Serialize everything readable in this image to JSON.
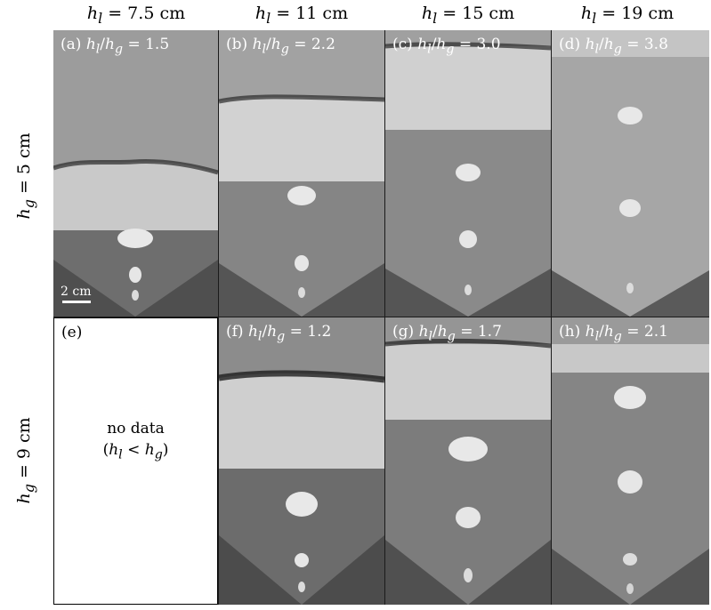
{
  "column_headers": [
    {
      "var": "h",
      "sub": "l",
      "value": " = 7.5 cm"
    },
    {
      "var": "h",
      "sub": "l",
      "value": " = 11 cm"
    },
    {
      "var": "h",
      "sub": "l",
      "value": " = 15 cm"
    },
    {
      "var": "h",
      "sub": "l",
      "value": " = 19 cm"
    }
  ],
  "row_labels": [
    {
      "var": "h",
      "sub": "g",
      "value": " = 5 cm"
    },
    {
      "var": "h",
      "sub": "g",
      "value": " = 9 cm"
    }
  ],
  "panels": [
    {
      "tag": "(a)",
      "ratio": " = 1.5"
    },
    {
      "tag": "(b)",
      "ratio": " = 2.2"
    },
    {
      "tag": "(c)",
      "ratio": " = 3.0"
    },
    {
      "tag": "(d)",
      "ratio": " = 3.8"
    },
    {
      "tag": "(e)",
      "ratio": ""
    },
    {
      "tag": "(f)",
      "ratio": " = 1.2"
    },
    {
      "tag": "(g)",
      "ratio": " = 1.7"
    },
    {
      "tag": "(h)",
      "ratio": " = 2.1"
    }
  ],
  "ratio_symbol": {
    "a": "h",
    "a_sub": "l",
    "slash": "/",
    "b": "h",
    "b_sub": "g"
  },
  "scale_bar_label": "2 cm",
  "no_data": {
    "line1": "no data",
    "open": "(",
    "a": "h",
    "a_sub": "l",
    "op": " < ",
    "b": "h",
    "b_sub": "g",
    "close": ")"
  }
}
